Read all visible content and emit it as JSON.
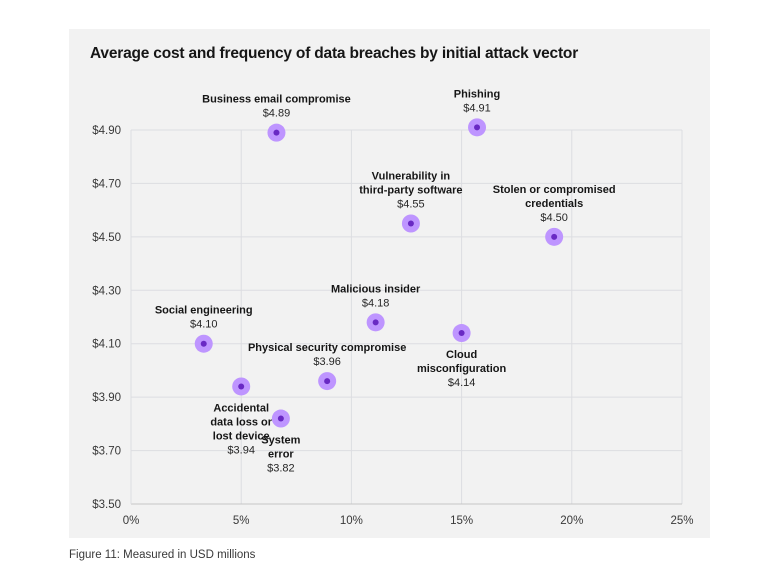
{
  "caption": "Figure 11: Measured in USD millions",
  "chart_data": {
    "type": "scatter",
    "title": "Average cost and frequency of data breaches by initial attack vector",
    "xlabel": "",
    "ylabel": "",
    "xlim": [
      0,
      25
    ],
    "ylim": [
      3.5,
      4.9
    ],
    "grid": true,
    "x_ticks": [
      0,
      5,
      10,
      15,
      20,
      25
    ],
    "x_tick_labels": [
      "0%",
      "5%",
      "10%",
      "15%",
      "20%",
      "25%"
    ],
    "y_ticks": [
      3.5,
      3.7,
      3.9,
      4.1,
      4.3,
      4.5,
      4.7,
      4.9
    ],
    "y_tick_labels": [
      "$3.50",
      "$3.70",
      "$3.90",
      "$4.10",
      "$4.30",
      "$4.50",
      "$4.70",
      "$4.90"
    ],
    "marker_color_outer": "#be95ff",
    "marker_color_inner": "#6929c4",
    "points": [
      {
        "label": [
          "Business email compromise"
        ],
        "value_label": "$4.89",
        "x": 6.6,
        "y": 4.89,
        "label_pos": "above"
      },
      {
        "label": [
          "Phishing"
        ],
        "value_label": "$4.91",
        "x": 15.7,
        "y": 4.91,
        "label_pos": "above"
      },
      {
        "label": [
          "Vulnerability in",
          "third-party software"
        ],
        "value_label": "$4.55",
        "x": 12.7,
        "y": 4.55,
        "label_pos": "above"
      },
      {
        "label": [
          "Stolen or compromised",
          "credentials"
        ],
        "value_label": "$4.50",
        "x": 19.2,
        "y": 4.5,
        "label_pos": "above"
      },
      {
        "label": [
          "Malicious insider"
        ],
        "value_label": "$4.18",
        "x": 11.1,
        "y": 4.18,
        "label_pos": "above"
      },
      {
        "label": [
          "Social engineering"
        ],
        "value_label": "$4.10",
        "x": 3.3,
        "y": 4.1,
        "label_pos": "above"
      },
      {
        "label": [
          "Cloud",
          "misconfiguration"
        ],
        "value_label": "$4.14",
        "x": 15.0,
        "y": 4.14,
        "label_pos": "below"
      },
      {
        "label": [
          "Physical security compromise"
        ],
        "value_label": "$3.96",
        "x": 8.9,
        "y": 3.96,
        "label_pos": "above"
      },
      {
        "label": [
          "Accidental",
          "data loss or",
          "lost device"
        ],
        "value_label": "$3.94",
        "x": 5.0,
        "y": 3.94,
        "label_pos": "below"
      },
      {
        "label": [
          "System",
          "error"
        ],
        "value_label": "$3.82",
        "x": 6.8,
        "y": 3.82,
        "label_pos": "below"
      }
    ]
  }
}
